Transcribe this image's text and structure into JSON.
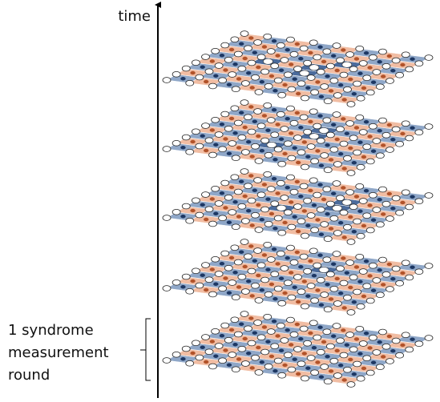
{
  "axis_label": "time",
  "annotation": {
    "lines": [
      "1 syndrome",
      "measurement",
      "round"
    ]
  }
}
